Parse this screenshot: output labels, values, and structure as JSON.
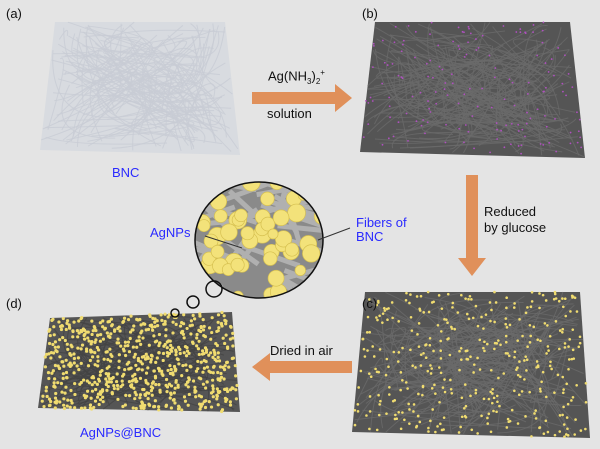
{
  "panels": {
    "a": {
      "label": "(a)",
      "caption": "BNC"
    },
    "b": {
      "label": "(b)"
    },
    "c": {
      "label": "(c)"
    },
    "d": {
      "label": "(d)",
      "caption": "AgNPs@BNC"
    }
  },
  "arrows": {
    "step1": {
      "reagent_main": "Ag(NH",
      "sub1": "3",
      "paren": ")",
      "sub2": "2",
      "sup": "+",
      "line2": "solution"
    },
    "step2": {
      "line1": "Reduced",
      "line2": "by glucose"
    },
    "step3": {
      "line1": "Dried in air"
    }
  },
  "inset": {
    "label_left": "AgNPs",
    "label_right_1": "Fibers of",
    "label_right_2": "BNC"
  },
  "colors": {
    "arrow": "#e0905a",
    "label_blue": "#2a2aff",
    "fiber_white": "#c8ccd4",
    "fiber_gray": "#6a6a6a",
    "silver_dots": "#b050c0",
    "agnp": "#f0dc70"
  }
}
